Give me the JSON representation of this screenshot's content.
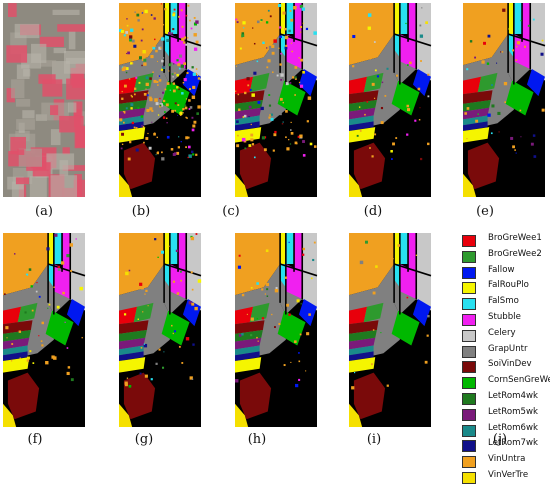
{
  "panels": [
    {
      "label": "(a)",
      "kind": "false-color-image"
    },
    {
      "label": "(b)",
      "kind": "classification-map",
      "noise": "high"
    },
    {
      "label": "(c)",
      "kind": "classification-map",
      "noise": "medium"
    },
    {
      "label": "(d)",
      "kind": "classification-map",
      "noise": "low"
    },
    {
      "label": "(e)",
      "kind": "classification-map",
      "noise": "low"
    },
    {
      "label": "(f)",
      "kind": "classification-map",
      "noise": "low"
    },
    {
      "label": "(g)",
      "kind": "classification-map",
      "noise": "low"
    },
    {
      "label": "(h)",
      "kind": "classification-map",
      "noise": "low"
    },
    {
      "label": "(i)",
      "kind": "classification-map",
      "noise": "minimal"
    }
  ],
  "legend": {
    "label": "(j)",
    "classes": [
      {
        "name": "BroGreWee1",
        "color": "#e8000b"
      },
      {
        "name": "BroGreWee2",
        "color": "#2e9a2e"
      },
      {
        "name": "Fallow",
        "color": "#0018f0"
      },
      {
        "name": "FalRouPlo",
        "color": "#f5f500"
      },
      {
        "name": "FalSmo",
        "color": "#28e0f0"
      },
      {
        "name": "Stubble",
        "color": "#f020f0"
      },
      {
        "name": "Celery",
        "color": "#c8c8c8"
      },
      {
        "name": "GrapUntr",
        "color": "#808080"
      },
      {
        "name": "SoiVinDev",
        "color": "#7a0a0a"
      },
      {
        "name": "CornSenGreWee",
        "color": "#00b800"
      },
      {
        "name": "LetRom4wk",
        "color": "#1f7a1f"
      },
      {
        "name": "LetRom5wk",
        "color": "#7a1a7a"
      },
      {
        "name": "LetRom6wk",
        "color": "#1a8a8a"
      },
      {
        "name": "LetRom7wk",
        "color": "#10108a"
      },
      {
        "name": "VinUntra",
        "color": "#f0a020"
      },
      {
        "name": "VinVerTre",
        "color": "#f5e000"
      }
    ]
  },
  "colors": {
    "background": "#000000",
    "satellite_base": "#8e8a80",
    "satellite_red": "#e0506a"
  }
}
